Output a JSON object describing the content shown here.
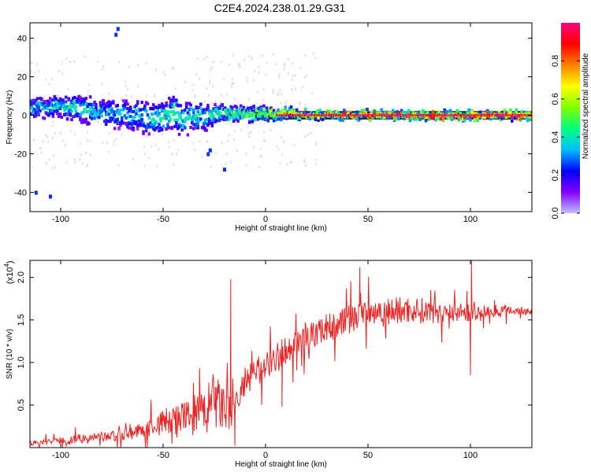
{
  "title": "C2E4.2024.238.01.29.G31",
  "colors": {
    "signal": "#ff0000",
    "snr_line": "#ee2222",
    "baseline_band": "#000000"
  },
  "chart_data": [
    {
      "type": "heatmap",
      "name": "spectrogram",
      "xlabel": "Height of straight line (km)",
      "ylabel": "Frequency (Hz)",
      "xlim": [
        -115,
        130
      ],
      "ylim": [
        -50,
        48
      ],
      "xticks": [
        -100,
        -50,
        0,
        50,
        100
      ],
      "xtick_labels": [
        "-100",
        "-50",
        "0",
        "50",
        "100"
      ],
      "yticks": [
        -40,
        -20,
        0,
        20,
        40
      ],
      "ytick_labels": [
        "-40",
        "-20",
        "0",
        "20",
        "40"
      ],
      "colorbar": {
        "label": "Normalized spectral amplitude",
        "range": [
          0,
          1
        ],
        "ticks": [
          0.0,
          0.2,
          0.4,
          0.6,
          0.8
        ],
        "tick_labels": [
          "0.0",
          "0.2",
          "0.4",
          "0.6",
          "0.8"
        ],
        "colormap": [
          "#c0c0ff",
          "#8000ff",
          "#0000ff",
          "#00c0ff",
          "#00ff80",
          "#80ff00",
          "#ffff00",
          "#ff8000",
          "#ff0000",
          "#ff0080"
        ]
      },
      "ridge": {
        "x": [
          -115,
          -100,
          -90,
          -80,
          -70,
          -60,
          -50,
          -45,
          -40,
          -35,
          -30,
          -25,
          -20,
          -10,
          0,
          10,
          20,
          40,
          60,
          80,
          100,
          130
        ],
        "frequency": [
          4,
          5,
          3,
          1,
          0,
          -1,
          -2,
          2,
          -3,
          0,
          -1,
          0,
          1,
          0.5,
          1,
          1,
          0.5,
          0,
          0,
          0,
          0,
          0
        ],
        "spread": [
          3,
          3,
          4,
          4,
          4,
          5,
          5,
          5,
          5,
          4,
          4,
          3,
          2,
          2,
          2,
          1.5,
          1,
          1,
          1,
          1,
          1,
          1
        ],
        "amplitude": [
          0.35,
          0.4,
          0.4,
          0.35,
          0.35,
          0.35,
          0.4,
          0.45,
          0.4,
          0.4,
          0.4,
          0.45,
          0.5,
          0.55,
          0.6,
          0.7,
          0.8,
          0.85,
          0.9,
          0.9,
          0.95,
          0.95
        ]
      },
      "outliers": [
        {
          "x": -72,
          "frequency": 45
        },
        {
          "x": -73,
          "frequency": 42
        },
        {
          "x": -28,
          "frequency": -20
        },
        {
          "x": -27,
          "frequency": -18
        },
        {
          "x": -20,
          "frequency": -28
        },
        {
          "x": -112,
          "frequency": -40
        },
        {
          "x": -105,
          "frequency": -42
        }
      ]
    },
    {
      "type": "line",
      "name": "snr",
      "xlabel": "Height of straight line (km)",
      "ylabel": "SNR (10 * v/v)",
      "y_multiplier_label": "(x10",
      "y_multiplier_exp": "4",
      "y_multiplier_close": ")",
      "xlim": [
        -115,
        130
      ],
      "ylim": [
        0,
        2.2
      ],
      "xticks": [
        -100,
        -50,
        0,
        50,
        100
      ],
      "xtick_labels": [
        "-100",
        "-50",
        "0",
        "50",
        "100"
      ],
      "yticks": [
        0.5,
        1.0,
        1.5,
        2.0
      ],
      "ytick_labels": [
        "0.5",
        "1.0",
        "1.5",
        "2.0"
      ],
      "envelope": {
        "x": [
          -115,
          -100,
          -90,
          -80,
          -70,
          -60,
          -50,
          -40,
          -30,
          -25,
          -20,
          -17,
          -15,
          -10,
          -5,
          0,
          5,
          10,
          20,
          30,
          40,
          50,
          60,
          70,
          80,
          90,
          100,
          110,
          120,
          130
        ],
        "y": [
          0.05,
          0.08,
          0.1,
          0.12,
          0.15,
          0.2,
          0.3,
          0.35,
          0.4,
          0.55,
          0.45,
          0.4,
          0.5,
          0.75,
          0.85,
          1.0,
          1.05,
          1.15,
          1.3,
          1.4,
          1.5,
          1.6,
          1.6,
          1.62,
          1.6,
          1.6,
          1.58,
          1.6,
          1.62,
          1.6
        ],
        "noise": [
          0.03,
          0.05,
          0.06,
          0.06,
          0.07,
          0.09,
          0.16,
          0.2,
          0.28,
          0.35,
          0.3,
          0.25,
          0.2,
          0.2,
          0.18,
          0.18,
          0.18,
          0.16,
          0.16,
          0.16,
          0.18,
          0.18,
          0.18,
          0.16,
          0.15,
          0.13,
          0.1,
          0.08,
          0.06,
          0.05
        ]
      },
      "spikes": [
        {
          "x": -17,
          "y": 1.98
        },
        {
          "x": -15,
          "y": 0.02
        },
        {
          "x": 8,
          "y": 0.48
        },
        {
          "x": 100,
          "y": 0.85
        },
        {
          "x": 100.5,
          "y": 2.2
        },
        {
          "x": 46,
          "y": 2.12
        }
      ]
    }
  ]
}
